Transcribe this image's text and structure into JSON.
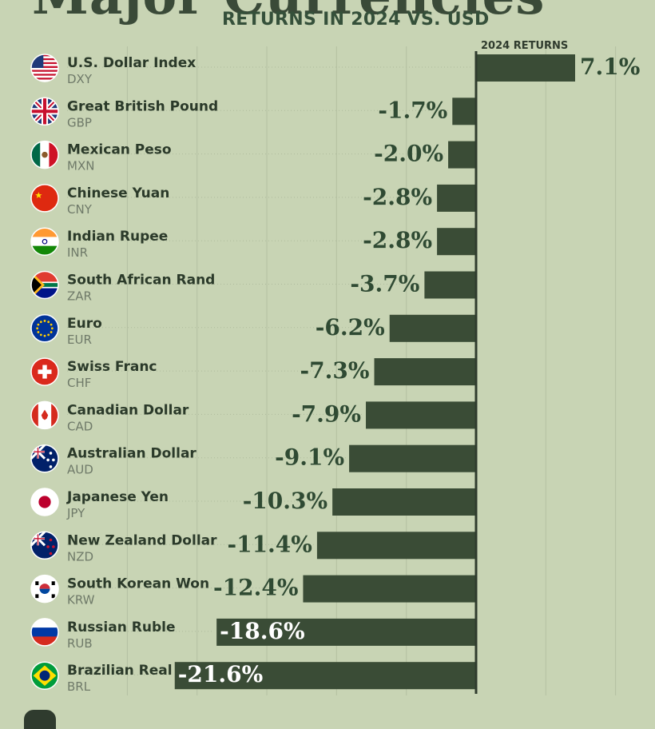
{
  "header": {
    "title": "Major Currencies",
    "subtitle": "RETURNS IN 2024 VS. USD"
  },
  "colors": {
    "background": "#c8d4b4",
    "bar": "#3a4c36",
    "axis": "#2f3b2e",
    "gridline": "#b4c0a2",
    "label_dark": "#2f4a33",
    "label_light": "#ffffff"
  },
  "chart_data": {
    "type": "bar",
    "orientation": "horizontal",
    "column_header": "2024 RETURNS",
    "xlim": [
      -25,
      12
    ],
    "grid": true,
    "categories": [
      {
        "name": "U.S. Dollar Index",
        "code": "DXY",
        "flag": "us-flag"
      },
      {
        "name": "Great British Pound",
        "code": "GBP",
        "flag": "uk-flag"
      },
      {
        "name": "Mexican Peso",
        "code": "MXN",
        "flag": "mexico-flag"
      },
      {
        "name": "Chinese Yuan",
        "code": "CNY",
        "flag": "china-flag"
      },
      {
        "name": "Indian Rupee",
        "code": "INR",
        "flag": "india-flag"
      },
      {
        "name": "South African Rand",
        "code": "ZAR",
        "flag": "south-africa-flag"
      },
      {
        "name": "Euro",
        "code": "EUR",
        "flag": "eu-flag"
      },
      {
        "name": "Swiss Franc",
        "code": "CHF",
        "flag": "switzerland-flag"
      },
      {
        "name": "Canadian Dollar",
        "code": "CAD",
        "flag": "canada-flag"
      },
      {
        "name": "Australian Dollar",
        "code": "AUD",
        "flag": "australia-flag"
      },
      {
        "name": "Japanese Yen",
        "code": "JPY",
        "flag": "japan-flag"
      },
      {
        "name": "New Zealand Dollar",
        "code": "NZD",
        "flag": "new-zealand-flag"
      },
      {
        "name": "South Korean Won",
        "code": "KRW",
        "flag": "south-korea-flag"
      },
      {
        "name": "Russian Ruble",
        "code": "RUB",
        "flag": "russia-flag"
      },
      {
        "name": "Brazilian Real",
        "code": "BRL",
        "flag": "brazil-flag"
      }
    ],
    "values": [
      7.1,
      -1.7,
      -2.0,
      -2.8,
      -2.8,
      -3.7,
      -6.2,
      -7.3,
      -7.9,
      -9.1,
      -10.3,
      -11.4,
      -12.4,
      -18.6,
      -21.6
    ],
    "value_labels": [
      "7.1%",
      "-1.7%",
      "-2.0%",
      "-2.8%",
      "-2.8%",
      "-3.7%",
      "-6.2%",
      "-7.3%",
      "-7.9%",
      "-9.1%",
      "-10.3%",
      "-11.4%",
      "-12.4%",
      "-18.6%",
      "-21.6%"
    ]
  }
}
